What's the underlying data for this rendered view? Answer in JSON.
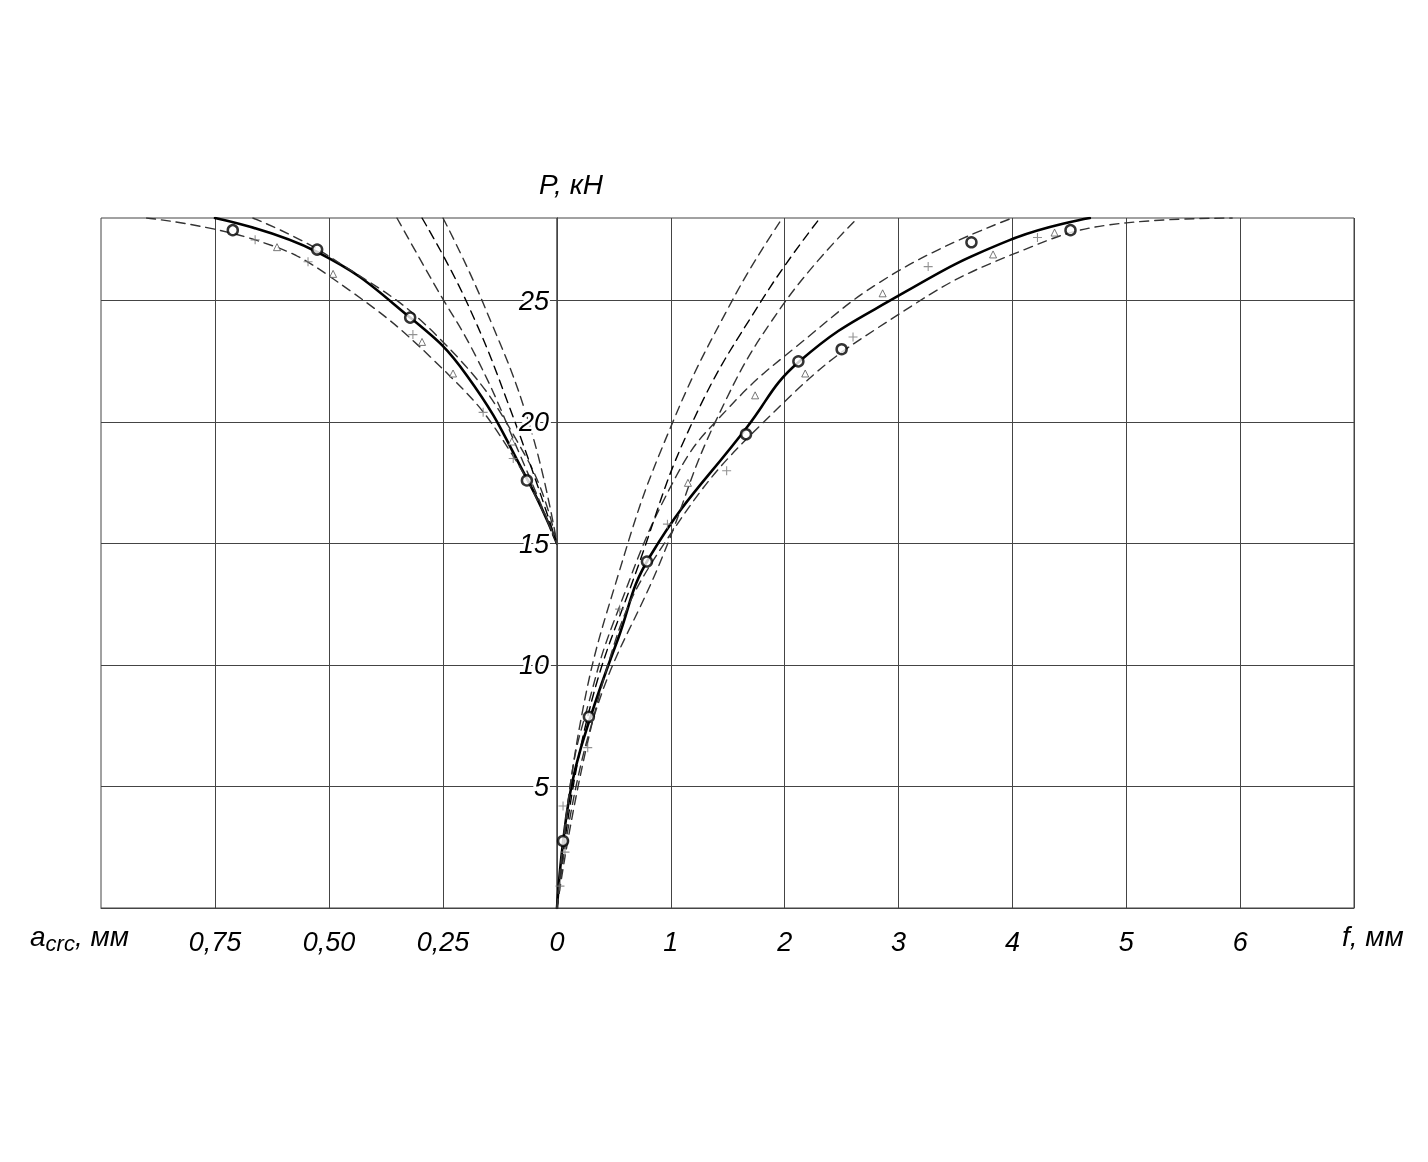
{
  "chart_data": [
    {
      "type": "line",
      "xlabel": "a$_{crc}$, мм",
      "xlim": [
        1,
        0
      ],
      "xticks": [
        {
          "value": 0.75,
          "label": "0,75"
        },
        {
          "value": 0.5,
          "label": "0,50"
        },
        {
          "value": 0.25,
          "label": "0,25"
        }
      ],
      "ylim": [
        0,
        28.4
      ],
      "yticks": [
        5,
        10,
        15,
        20,
        25
      ],
      "tick_labels": "x",
      "grid": true,
      "series": [
        {
          "type": "line",
          "color": "#000000",
          "line_style": "solid",
          "x": [
            0.75,
            0.526,
            0.322,
            0.197,
            0.064,
            0
          ],
          "values": [
            28.4,
            27.0,
            24.3,
            21.9,
            17.6,
            15
          ]
        },
        {
          "type": "line",
          "color": "#333333",
          "line_style": "dashed",
          "x": [
            0.9,
            0.662,
            0.491,
            0.235,
            0.096,
            0
          ],
          "values": [
            28.4,
            27.5,
            25.9,
            21.9,
            18.6,
            15
          ]
        },
        {
          "type": "line",
          "color": "#333333",
          "line_style": "dashed",
          "x": [
            0.667,
            0.498,
            0.25,
            0.066,
            0
          ],
          "values": [
            28.4,
            26.8,
            23.3,
            18.5,
            15
          ]
        },
        {
          "type": "line",
          "color": "#000000",
          "line_style": "dashed",
          "x": [
            0.296,
            0.197,
            0.096,
            0
          ],
          "values": [
            28.4,
            24.9,
            20.2,
            15
          ]
        },
        {
          "type": "line",
          "color": "#333333",
          "line_style": "dashed",
          "x": [
            0.351,
            0.27,
            0.175,
            0.08,
            0
          ],
          "values": [
            28.4,
            25.7,
            22.6,
            18.6,
            15
          ]
        },
        {
          "type": "line",
          "color": "#333333",
          "line_style": "dashed",
          "x": [
            0.25,
            0.162,
            0.059,
            0
          ],
          "values": [
            28.4,
            24.9,
            19.8,
            15
          ]
        },
        {
          "type": "scatter",
          "color": "#000000",
          "marker": "circle",
          "x": [
            0.711,
            0.526,
            0.322,
            0.066
          ],
          "values": [
            27.9,
            27.1,
            24.3,
            17.6
          ]
        },
        {
          "type": "scatter",
          "color": "#555555",
          "marker": "triangle",
          "x": [
            0.614,
            0.491,
            0.296,
            0.228,
            0.099
          ],
          "values": [
            27.2,
            26.1,
            23.3,
            22.0,
            19.2
          ]
        },
        {
          "type": "scatter",
          "color": "#777777",
          "marker": "cross",
          "x": [
            0.662,
            0.546,
            0.316,
            0.162,
            0.096
          ],
          "values": [
            27.5,
            26.6,
            23.6,
            20.4,
            18.5
          ]
        }
      ]
    },
    {
      "type": "line",
      "xlabel": "f, мм",
      "ylabel": "P, кН",
      "xlim": [
        0,
        7
      ],
      "xticks": [
        0,
        1,
        2,
        3,
        4,
        5,
        6
      ],
      "ylim": [
        0,
        28.4
      ],
      "yticks": [
        5,
        10,
        15,
        20,
        25
      ],
      "grid": true,
      "series": [
        {
          "type": "line",
          "color": "#000000",
          "line_style": "solid",
          "x": [
            0,
            0.053,
            0.14,
            0.29,
            0.53,
            0.82,
            1.67,
            2.13,
            3.0,
            3.98,
            4.68
          ],
          "values": [
            0,
            2.7,
            5.3,
            7.8,
            11.0,
            14.5,
            19.8,
            22.5,
            25.2,
            27.5,
            28.4
          ]
        },
        {
          "type": "line",
          "color": "#333333",
          "line_style": "dashed",
          "x": [
            0,
            0.44,
            0.97,
            1.99,
            2.99,
            4.0,
            5.0,
            5.93
          ],
          "values": [
            0,
            9.9,
            15.2,
            20.8,
            24.4,
            26.9,
            28.2,
            28.4
          ]
        },
        {
          "type": "line",
          "color": "#333333",
          "line_style": "dashed",
          "x": [
            0,
            0.13,
            0.27,
            0.5,
            1.05,
            1.49,
            2.1,
            2.99,
            4.0
          ],
          "values": [
            0,
            5.5,
            8.3,
            11.8,
            17.8,
            20.5,
            23.1,
            26.2,
            28.4
          ]
        },
        {
          "type": "line",
          "color": "#000000",
          "line_style": "dashed",
          "x": [
            0,
            0.25,
            0.73,
            1.19,
            1.81,
            2.31
          ],
          "values": [
            0,
            7.5,
            14.3,
            20.0,
            25.1,
            28.4
          ]
        },
        {
          "type": "line",
          "color": "#333333",
          "line_style": "dashed",
          "x": [
            0,
            0.2,
            0.55,
            0.99,
            1.55,
            1.98
          ],
          "values": [
            0,
            7.5,
            13.9,
            19.7,
            25.1,
            28.4
          ]
        },
        {
          "type": "line",
          "color": "#333333",
          "line_style": "dashed",
          "x": [
            0,
            0.3,
            0.93,
            1.4,
            1.98,
            2.64
          ],
          "values": [
            0,
            7.5,
            14.5,
            20.1,
            24.8,
            28.4
          ]
        },
        {
          "type": "scatter",
          "color": "#000000",
          "marker": "circle",
          "x": [
            0.053,
            0.28,
            0.79,
            1.66,
            2.12,
            2.5,
            3.64,
            4.51
          ],
          "values": [
            2.76,
            7.87,
            14.26,
            19.5,
            22.5,
            23.0,
            27.4,
            27.9
          ]
        },
        {
          "type": "scatter",
          "color": "#555555",
          "marker": "triangle",
          "x": [
            1.15,
            1.74,
            2.18,
            2.86,
            3.83,
            4.37
          ],
          "values": [
            17.5,
            21.1,
            22.0,
            25.3,
            26.9,
            27.8
          ]
        },
        {
          "type": "scatter",
          "color": "#777777",
          "marker": "cross",
          "x": [
            0.026,
            0.07,
            0.053,
            0.27,
            0.55,
            0.97,
            1.49,
            2.6,
            3.26,
            4.22
          ],
          "values": [
            0.9,
            2.3,
            4.2,
            6.6,
            12.3,
            15.8,
            18.0,
            23.5,
            26.4,
            27.6
          ]
        }
      ]
    }
  ]
}
